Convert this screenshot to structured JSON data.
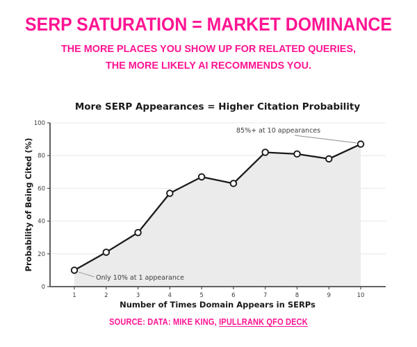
{
  "page": {
    "title": "SERP SATURATION = MARKET DOMINANCE",
    "subtitle_line1": "THE MORE PLACES YOU SHOW UP FOR RELATED QUERIES,",
    "subtitle_line2": "THE MORE LIKELY AI RECOMMENDS YOU.",
    "accent_color": "#FF1493"
  },
  "chart_data": {
    "type": "line",
    "title": "More SERP Appearances = Higher Citation Probability",
    "xlabel": "Number of Times Domain Appears in SERPs",
    "ylabel": "Probability of Being Cited (%)",
    "x": [
      1,
      2,
      3,
      4,
      5,
      6,
      7,
      8,
      9,
      10
    ],
    "values": [
      10,
      21,
      33,
      57,
      67,
      63,
      82,
      81,
      78,
      87
    ],
    "xlim": [
      1,
      10
    ],
    "ylim": [
      0,
      100
    ],
    "yticks": [
      0,
      20,
      40,
      60,
      80,
      100
    ],
    "grid": true,
    "legend": "none",
    "area_fill": "#ebebeb",
    "grid_color": "#e9e9e9",
    "line_color": "#1a1a1a",
    "marker_fill": "#ffffff",
    "axis_color": "#4d4d4d",
    "annotations": [
      {
        "text": "85%+ at 10 appearances",
        "target_x": 10,
        "target_y": 87
      },
      {
        "text": "Only 10% at 1 appearance",
        "target_x": 1,
        "target_y": 10
      }
    ]
  },
  "source": {
    "prefix": "SOURCE: DATA: MIKE KING, ",
    "link_text": "IPULLRANK QFO DECK"
  }
}
